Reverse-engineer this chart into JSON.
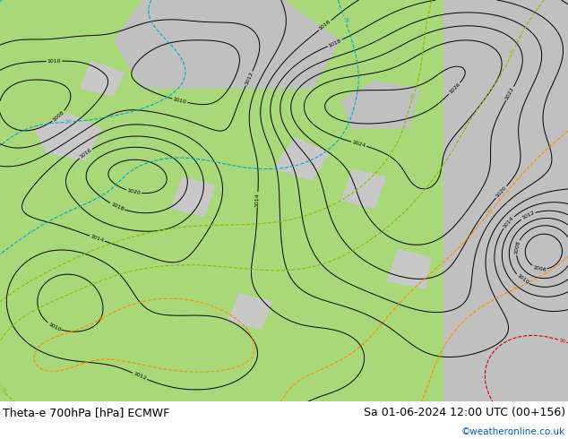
{
  "title_left": "Theta-e 700hPa [hPa] ECMWF",
  "title_right": "Sa 01-06-2024 12:00 UTC (00+156)",
  "credit": "©weatheronline.co.uk",
  "credit_color": "#0055cc",
  "bg_color": "#ffffff",
  "land_green": "#a8d878",
  "land_light_green": "#c8e8a0",
  "sea_gray": "#c0c0c0",
  "fig_width": 6.34,
  "fig_height": 4.9,
  "dpi": 100,
  "title_fontsize": 9.0,
  "credit_fontsize": 7.5
}
